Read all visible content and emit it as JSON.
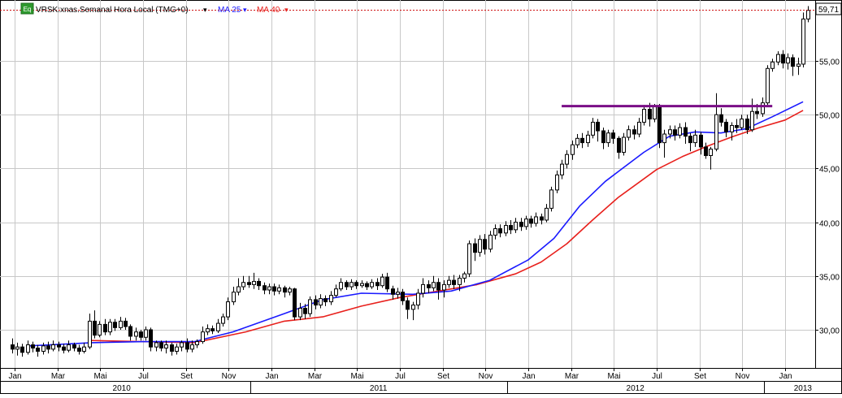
{
  "header": {
    "icon_label": "Eq",
    "title": "VRSK:xnas.Semanal Hora Local (TMG+0)",
    "ma25_label": "MA 25",
    "ma40_label": "MA 40",
    "dropdown_glyph": "▾"
  },
  "last_price": {
    "label": "59,71",
    "value": 59.71
  },
  "colors": {
    "up": "#ffffff",
    "down": "#000000",
    "ma25": "#1a1aff",
    "ma40": "#e8201c",
    "resistance": "#7a0d86",
    "last_line": "#cc0000",
    "grid": "#c8c8c8",
    "axis_bg": "#ffffff"
  },
  "chart_data": {
    "type": "candlestick",
    "title": "VRSK:xnas.Semanal Hora Local (TMG+0)",
    "y_axis": {
      "position": "right",
      "ticks": [
        30,
        35,
        40,
        45,
        50,
        55
      ],
      "tick_labels": [
        "30,00",
        "35,00",
        "40,00",
        "45,00",
        "50,00",
        "55,00"
      ],
      "ylim": [
        25.5,
        60.8
      ]
    },
    "x_axis": {
      "month_labels": [
        "Jan",
        "Mar",
        "Mai",
        "Jul",
        "Set",
        "Nov",
        "Jan",
        "Mar",
        "Mai",
        "Jul",
        "Set",
        "Nov",
        "Jan",
        "Mar",
        "Mai",
        "Jul",
        "Set",
        "Nov",
        "Jan"
      ],
      "year_labels": [
        "2010",
        "2011",
        "2012",
        "2013"
      ]
    },
    "grid": true,
    "resistance_level": 50.8,
    "legend": [
      "MA 25",
      "MA 40"
    ],
    "ma25": [
      [
        2010.05,
        28.5
      ],
      [
        2010.3,
        28.8
      ],
      [
        2010.5,
        28.9
      ],
      [
        2010.7,
        28.9
      ],
      [
        2010.85,
        29.8
      ],
      [
        2011.05,
        31.5
      ],
      [
        2011.2,
        32.8
      ],
      [
        2011.35,
        33.4
      ],
      [
        2011.55,
        33.3
      ],
      [
        2011.7,
        33.6
      ],
      [
        2011.85,
        34.6
      ],
      [
        2012.0,
        36.5
      ],
      [
        2012.1,
        38.5
      ],
      [
        2012.2,
        41.5
      ],
      [
        2012.3,
        43.8
      ],
      [
        2012.45,
        46.5
      ],
      [
        2012.55,
        48.0
      ],
      [
        2012.65,
        48.4
      ],
      [
        2012.75,
        48.3
      ],
      [
        2012.85,
        48.7
      ],
      [
        2012.95,
        49.8
      ],
      [
        2013.07,
        51.2
      ]
    ],
    "ma40": [
      [
        2010.3,
        29.0
      ],
      [
        2010.7,
        28.8
      ],
      [
        2010.9,
        29.8
      ],
      [
        2011.05,
        30.8
      ],
      [
        2011.2,
        31.2
      ],
      [
        2011.35,
        32.2
      ],
      [
        2011.5,
        33.0
      ],
      [
        2011.65,
        33.6
      ],
      [
        2011.8,
        34.2
      ],
      [
        2011.95,
        35.2
      ],
      [
        2012.05,
        36.3
      ],
      [
        2012.15,
        38.0
      ],
      [
        2012.25,
        40.2
      ],
      [
        2012.35,
        42.3
      ],
      [
        2012.5,
        44.9
      ],
      [
        2012.6,
        46.1
      ],
      [
        2012.7,
        47.1
      ],
      [
        2012.8,
        48.0
      ],
      [
        2012.9,
        48.8
      ],
      [
        2013.0,
        49.5
      ],
      [
        2013.07,
        50.4
      ]
    ],
    "candles": [
      [
        2009.99,
        28.6,
        28.2,
        29.2,
        27.8
      ],
      [
        2010.01,
        28.2,
        28.4,
        28.8,
        27.6
      ],
      [
        2010.03,
        28.4,
        27.9,
        28.7,
        27.5
      ],
      [
        2010.05,
        27.9,
        28.6,
        29.0,
        27.7
      ],
      [
        2010.07,
        28.6,
        28.3,
        28.9,
        27.9
      ],
      [
        2010.09,
        28.3,
        28.0,
        28.6,
        27.5
      ],
      [
        2010.11,
        28.0,
        28.5,
        28.8,
        27.7
      ],
      [
        2010.13,
        28.5,
        28.2,
        28.9,
        27.8
      ],
      [
        2010.15,
        28.2,
        28.6,
        29.0,
        28.0
      ],
      [
        2010.17,
        28.6,
        28.4,
        28.9,
        28.0
      ],
      [
        2010.19,
        28.4,
        28.1,
        28.7,
        27.8
      ],
      [
        2010.21,
        28.1,
        28.6,
        29.0,
        27.9
      ],
      [
        2010.23,
        28.6,
        28.3,
        28.8,
        28.0
      ],
      [
        2010.25,
        28.3,
        28.0,
        28.6,
        27.7
      ],
      [
        2010.27,
        28.0,
        28.4,
        28.8,
        27.8
      ],
      [
        2010.29,
        28.4,
        30.8,
        31.5,
        28.2
      ],
      [
        2010.31,
        30.8,
        29.5,
        31.8,
        29.2
      ],
      [
        2010.33,
        29.5,
        30.5,
        30.8,
        29.3
      ],
      [
        2010.35,
        30.5,
        29.8,
        31.0,
        29.5
      ],
      [
        2010.37,
        29.8,
        30.7,
        31.0,
        29.5
      ],
      [
        2010.39,
        30.7,
        30.2,
        31.0,
        29.9
      ],
      [
        2010.41,
        30.2,
        30.8,
        31.2,
        30.0
      ],
      [
        2010.43,
        30.8,
        30.3,
        31.1,
        30.0
      ],
      [
        2010.45,
        30.3,
        29.4,
        30.5,
        29.0
      ],
      [
        2010.47,
        29.4,
        29.8,
        30.2,
        29.0
      ],
      [
        2010.49,
        29.8,
        29.3,
        30.0,
        29.0
      ],
      [
        2010.51,
        29.3,
        30.0,
        30.3,
        29.0
      ],
      [
        2010.53,
        30.0,
        28.4,
        30.2,
        28.0
      ],
      [
        2010.55,
        28.4,
        28.8,
        29.0,
        28.0
      ],
      [
        2010.57,
        28.8,
        28.3,
        29.0,
        28.0
      ],
      [
        2010.59,
        28.3,
        28.6,
        29.0,
        27.8
      ],
      [
        2010.61,
        28.6,
        28.0,
        28.8,
        27.6
      ],
      [
        2010.63,
        28.0,
        28.4,
        28.7,
        27.7
      ],
      [
        2010.65,
        28.4,
        28.8,
        29.0,
        28.0
      ],
      [
        2010.67,
        28.8,
        28.2,
        29.2,
        27.9
      ],
      [
        2010.69,
        28.2,
        28.6,
        29.0,
        27.9
      ],
      [
        2010.71,
        28.6,
        28.9,
        29.1,
        28.3
      ],
      [
        2010.73,
        28.9,
        29.8,
        30.3,
        28.7
      ],
      [
        2010.75,
        29.8,
        30.1,
        30.5,
        29.5
      ],
      [
        2010.77,
        30.1,
        29.9,
        30.4,
        29.6
      ],
      [
        2010.79,
        29.9,
        30.6,
        31.0,
        29.7
      ],
      [
        2010.81,
        30.6,
        31.2,
        31.5,
        30.3
      ],
      [
        2010.83,
        31.2,
        32.6,
        33.0,
        30.9
      ],
      [
        2010.85,
        32.6,
        33.5,
        34.0,
        32.3
      ],
      [
        2010.87,
        33.5,
        34.0,
        34.8,
        33.2
      ],
      [
        2010.89,
        34.0,
        34.4,
        35.0,
        33.7
      ],
      [
        2010.91,
        34.4,
        34.2,
        35.0,
        33.9
      ],
      [
        2010.93,
        34.2,
        34.5,
        35.3,
        33.8
      ],
      [
        2010.95,
        34.5,
        34.1,
        34.8,
        33.7
      ],
      [
        2010.97,
        34.1,
        33.7,
        34.4,
        33.3
      ],
      [
        2010.99,
        33.7,
        34.0,
        34.3,
        33.3
      ],
      [
        2011.01,
        34.0,
        33.6,
        34.3,
        33.2
      ],
      [
        2011.03,
        33.6,
        33.9,
        34.2,
        33.3
      ],
      [
        2011.05,
        33.9,
        33.5,
        34.1,
        33.0
      ],
      [
        2011.07,
        33.5,
        33.8,
        34.0,
        33.2
      ],
      [
        2011.09,
        33.8,
        31.2,
        33.9,
        30.9
      ],
      [
        2011.11,
        31.2,
        32.0,
        32.5,
        30.9
      ],
      [
        2011.13,
        32.0,
        31.5,
        32.4,
        31.0
      ],
      [
        2011.15,
        31.5,
        32.8,
        33.1,
        31.2
      ],
      [
        2011.17,
        32.8,
        32.3,
        33.2,
        31.9
      ],
      [
        2011.19,
        32.3,
        32.9,
        33.3,
        32.0
      ],
      [
        2011.21,
        32.9,
        32.6,
        33.2,
        32.2
      ],
      [
        2011.23,
        32.6,
        33.2,
        33.6,
        32.3
      ],
      [
        2011.25,
        33.2,
        33.8,
        34.2,
        33.0
      ],
      [
        2011.27,
        33.8,
        34.4,
        34.8,
        33.6
      ],
      [
        2011.29,
        34.4,
        34.0,
        34.6,
        33.7
      ],
      [
        2011.31,
        34.0,
        34.4,
        34.7,
        33.7
      ],
      [
        2011.33,
        34.4,
        34.1,
        34.6,
        33.8
      ],
      [
        2011.35,
        34.1,
        34.3,
        34.6,
        33.9
      ],
      [
        2011.37,
        34.3,
        34.0,
        34.5,
        33.7
      ],
      [
        2011.39,
        34.0,
        34.4,
        34.7,
        33.8
      ],
      [
        2011.41,
        34.4,
        34.1,
        34.8,
        33.7
      ],
      [
        2011.43,
        34.1,
        34.9,
        35.2,
        33.9
      ],
      [
        2011.45,
        34.9,
        33.8,
        35.3,
        33.5
      ],
      [
        2011.47,
        33.8,
        33.3,
        34.1,
        32.8
      ],
      [
        2011.49,
        33.3,
        33.5,
        33.9,
        32.9
      ],
      [
        2011.51,
        33.5,
        32.7,
        33.8,
        32.3
      ],
      [
        2011.53,
        32.7,
        31.9,
        33.0,
        31.0
      ],
      [
        2011.55,
        31.9,
        32.3,
        32.6,
        30.9
      ],
      [
        2011.57,
        32.3,
        33.4,
        33.8,
        31.9
      ],
      [
        2011.59,
        33.4,
        34.2,
        34.8,
        33.0
      ],
      [
        2011.61,
        34.2,
        33.9,
        34.6,
        33.4
      ],
      [
        2011.63,
        33.9,
        34.4,
        35.0,
        33.6
      ],
      [
        2011.65,
        34.4,
        33.7,
        34.8,
        32.8
      ],
      [
        2011.67,
        33.7,
        34.2,
        34.6,
        33.0
      ],
      [
        2011.69,
        34.2,
        34.6,
        35.0,
        33.9
      ],
      [
        2011.71,
        34.6,
        34.2,
        35.1,
        33.8
      ],
      [
        2011.73,
        34.2,
        34.8,
        35.1,
        33.6
      ],
      [
        2011.75,
        34.8,
        35.2,
        35.4,
        34.4
      ],
      [
        2011.77,
        35.2,
        38.0,
        38.3,
        34.9
      ],
      [
        2011.79,
        38.0,
        37.2,
        38.5,
        36.4
      ],
      [
        2011.81,
        37.2,
        38.4,
        38.8,
        36.8
      ],
      [
        2011.83,
        38.4,
        37.5,
        38.9,
        37.0
      ],
      [
        2011.85,
        37.5,
        38.8,
        39.2,
        37.2
      ],
      [
        2011.87,
        38.8,
        39.4,
        39.8,
        38.4
      ],
      [
        2011.89,
        39.4,
        39.0,
        39.8,
        38.6
      ],
      [
        2011.91,
        39.0,
        39.7,
        40.1,
        38.7
      ],
      [
        2011.93,
        39.7,
        39.3,
        40.2,
        38.9
      ],
      [
        2011.95,
        39.3,
        40.0,
        40.4,
        39.0
      ],
      [
        2011.97,
        40.0,
        39.6,
        40.4,
        39.2
      ],
      [
        2011.99,
        39.6,
        40.3,
        40.6,
        39.3
      ],
      [
        2012.01,
        40.3,
        39.9,
        40.6,
        39.5
      ],
      [
        2012.03,
        39.9,
        40.5,
        40.9,
        39.6
      ],
      [
        2012.05,
        40.5,
        40.2,
        40.8,
        39.8
      ],
      [
        2012.07,
        40.2,
        41.3,
        41.7,
        40.0
      ],
      [
        2012.09,
        41.3,
        43.0,
        43.3,
        41.0
      ],
      [
        2012.11,
        43.0,
        44.4,
        44.8,
        42.7
      ],
      [
        2012.13,
        44.4,
        45.4,
        45.8,
        44.0
      ],
      [
        2012.15,
        45.4,
        46.3,
        46.7,
        45.0
      ],
      [
        2012.17,
        46.3,
        47.2,
        47.6,
        45.8
      ],
      [
        2012.19,
        47.2,
        47.8,
        48.2,
        46.9
      ],
      [
        2012.21,
        47.8,
        47.4,
        48.3,
        46.9
      ],
      [
        2012.23,
        47.4,
        48.1,
        48.5,
        47.0
      ],
      [
        2012.25,
        48.1,
        49.3,
        49.7,
        47.8
      ],
      [
        2012.27,
        49.3,
        48.5,
        49.6,
        47.5
      ],
      [
        2012.29,
        48.5,
        47.4,
        48.8,
        46.8
      ],
      [
        2012.31,
        47.4,
        48.3,
        48.6,
        47.0
      ],
      [
        2012.33,
        48.3,
        47.8,
        48.6,
        47.3
      ],
      [
        2012.35,
        47.8,
        46.5,
        48.0,
        45.9
      ],
      [
        2012.37,
        46.5,
        47.9,
        48.3,
        46.2
      ],
      [
        2012.39,
        47.9,
        48.6,
        49.0,
        47.6
      ],
      [
        2012.41,
        48.6,
        48.2,
        49.0,
        47.7
      ],
      [
        2012.43,
        48.2,
        49.3,
        49.7,
        47.9
      ],
      [
        2012.45,
        49.3,
        50.5,
        50.9,
        49.0
      ],
      [
        2012.47,
        50.5,
        49.6,
        51.1,
        48.9
      ],
      [
        2012.49,
        49.6,
        50.8,
        51.0,
        49.3
      ],
      [
        2012.51,
        50.8,
        47.4,
        51.0,
        46.9
      ],
      [
        2012.53,
        47.4,
        48.2,
        48.6,
        46.0
      ],
      [
        2012.55,
        48.2,
        48.6,
        49.0,
        47.8
      ],
      [
        2012.57,
        48.6,
        48.1,
        49.0,
        47.6
      ],
      [
        2012.59,
        48.1,
        48.8,
        49.2,
        47.8
      ],
      [
        2012.61,
        48.8,
        48.0,
        49.3,
        47.3
      ],
      [
        2012.63,
        48.0,
        47.4,
        48.3,
        46.6
      ],
      [
        2012.65,
        47.4,
        48.1,
        48.6,
        47.0
      ],
      [
        2012.67,
        48.1,
        47.0,
        48.4,
        46.3
      ],
      [
        2012.69,
        47.0,
        46.2,
        47.4,
        45.9
      ],
      [
        2012.71,
        46.2,
        46.8,
        47.0,
        44.9
      ],
      [
        2012.73,
        46.8,
        50.0,
        52.0,
        46.6
      ],
      [
        2012.75,
        50.0,
        49.3,
        50.6,
        48.9
      ],
      [
        2012.77,
        49.3,
        48.4,
        49.6,
        47.9
      ],
      [
        2012.79,
        48.4,
        49.0,
        49.3,
        47.6
      ],
      [
        2012.81,
        49.0,
        48.8,
        49.6,
        48.3
      ],
      [
        2012.83,
        48.8,
        49.6,
        50.0,
        48.6
      ],
      [
        2012.85,
        49.6,
        48.6,
        50.0,
        48.2
      ],
      [
        2012.87,
        48.6,
        50.3,
        51.5,
        48.4
      ],
      [
        2012.89,
        50.3,
        50.1,
        51.0,
        49.6
      ],
      [
        2012.91,
        50.1,
        51.1,
        51.6,
        49.8
      ],
      [
        2012.93,
        51.1,
        54.3,
        54.6,
        50.9
      ],
      [
        2012.95,
        54.3,
        54.9,
        55.2,
        54.0
      ],
      [
        2012.97,
        54.9,
        55.6,
        55.9,
        54.6
      ],
      [
        2012.99,
        55.6,
        54.8,
        56.0,
        54.3
      ],
      [
        2013.01,
        54.8,
        55.3,
        55.7,
        54.2
      ],
      [
        2013.03,
        55.3,
        54.5,
        55.6,
        53.6
      ],
      [
        2013.05,
        54.5,
        54.7,
        55.3,
        53.7
      ],
      [
        2013.07,
        54.7,
        58.9,
        59.5,
        54.4
      ],
      [
        2013.09,
        58.9,
        59.7,
        60.1,
        58.6
      ]
    ]
  }
}
